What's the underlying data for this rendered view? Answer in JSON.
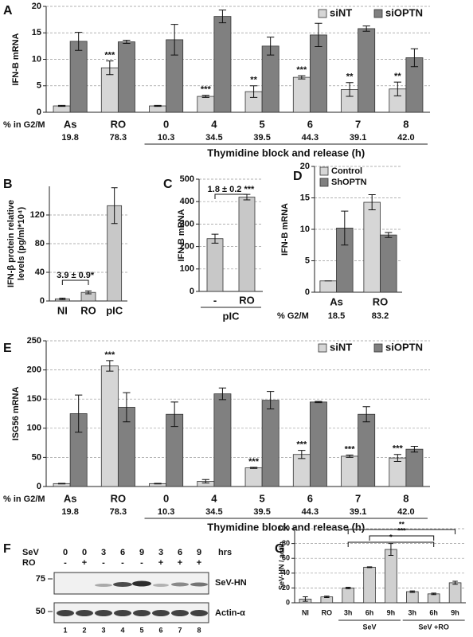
{
  "chart_data": [
    {
      "panel": "A",
      "type": "bar",
      "ylabel": "IFN-B mRNA",
      "categories": [
        "As",
        "RO",
        "0",
        "4",
        "5",
        "6",
        "7",
        "8"
      ],
      "series": [
        {
          "name": "siNT",
          "color": "#d6d6d6",
          "values": [
            1.2,
            8.4,
            1.2,
            3.0,
            3.9,
            6.6,
            4.3,
            4.4
          ],
          "errors": [
            0.1,
            1.3,
            0.1,
            0.2,
            1.1,
            0.3,
            1.3,
            1.3
          ]
        },
        {
          "name": "siOPTN",
          "color": "#808080",
          "values": [
            13.4,
            13.3,
            13.7,
            18.1,
            12.5,
            14.6,
            15.8,
            10.3
          ],
          "errors": [
            1.7,
            0.3,
            2.9,
            1.2,
            1.7,
            2.2,
            0.5,
            1.7
          ]
        }
      ],
      "significance": [
        null,
        "***",
        null,
        "***",
        "**",
        "***",
        "**",
        "**"
      ],
      "row_label": "% in G2/M",
      "row_values": [
        "19.8",
        "78.3",
        "10.3",
        "34.5",
        "39.5",
        "44.3",
        "39.1",
        "42.0"
      ],
      "group_labels": [
        "Thymidine block and release (h)"
      ],
      "ylim": [
        0,
        20
      ],
      "yticks": [
        0,
        5,
        10,
        15,
        20
      ],
      "grid": true,
      "legend": "upper right"
    },
    {
      "panel": "B",
      "type": "bar",
      "ylabel": [
        "IFN-β protein relative",
        "levels (pg/ml*10⁴)"
      ],
      "categories": [
        "NI",
        "RO",
        "pIC"
      ],
      "color": "#c8c8c8",
      "values": [
        3,
        12,
        133
      ],
      "errors": [
        1,
        2,
        25
      ],
      "annotations": [
        "3.9 ± 0.9*"
      ],
      "ylim": [
        0,
        160
      ],
      "yticks": [
        0,
        40,
        80,
        120
      ],
      "grid": true
    },
    {
      "panel": "C",
      "type": "bar",
      "ylabel": "IFN-B mRNA",
      "categories": [
        "-",
        "RO"
      ],
      "color": "#c8c8c8",
      "values": [
        235,
        420
      ],
      "errors": [
        20,
        12
      ],
      "annotations": [
        "1.8 ± 0.2 ***"
      ],
      "group_labels": [
        "pIC"
      ],
      "ylim": [
        0,
        500
      ],
      "yticks": [
        0,
        100,
        200,
        300,
        400,
        500
      ],
      "grid": true
    },
    {
      "panel": "D",
      "type": "bar",
      "ylabel": "IFN-B mRNA",
      "categories": [
        "As",
        "RO"
      ],
      "series": [
        {
          "name": "Control",
          "color": "#d6d6d6",
          "values": [
            1.8,
            14.3
          ],
          "errors": [
            0,
            1.2
          ]
        },
        {
          "name": "ShOPTN",
          "color": "#808080",
          "values": [
            10.2,
            9.1
          ],
          "errors": [
            2.7,
            0.4
          ]
        }
      ],
      "row_label": "% G2/M",
      "row_values": [
        "18.5",
        "83.2"
      ],
      "ylim": [
        0,
        20
      ],
      "yticks": [
        0,
        5,
        10,
        15,
        20
      ],
      "grid": true,
      "legend": "upper left"
    },
    {
      "panel": "E",
      "type": "bar",
      "ylabel": "ISG56 mRNA",
      "categories": [
        "As",
        "RO",
        "0",
        "4",
        "5",
        "6",
        "7",
        "8"
      ],
      "series": [
        {
          "name": "siNT",
          "color": "#d6d6d6",
          "values": [
            5,
            207,
            5,
            9,
            32,
            55,
            52,
            49
          ],
          "errors": [
            0.5,
            9,
            0.5,
            3,
            1,
            7,
            2,
            6
          ]
        },
        {
          "name": "siOPTN",
          "color": "#808080",
          "values": [
            125,
            136,
            124,
            159,
            148,
            145,
            124,
            64
          ],
          "errors": [
            32,
            25,
            21,
            10,
            15,
            1,
            13,
            5
          ]
        }
      ],
      "significance": [
        null,
        "***",
        null,
        null,
        "***",
        "***",
        "***",
        "***"
      ],
      "row_label": "% in G2/M",
      "row_values": [
        "19.8",
        "78.3",
        "10.3",
        "34.5",
        "39.5",
        "44.3",
        "39.1",
        "42.0"
      ],
      "group_labels": [
        "Thymidine block and release (h)"
      ],
      "ylim": [
        0,
        250
      ],
      "yticks": [
        0,
        50,
        100,
        150,
        200,
        250
      ],
      "grid": true,
      "legend": "upper right"
    },
    {
      "panel": "G",
      "type": "bar",
      "ylabel": "SeV-HN / actin",
      "categories": [
        "NI",
        "RO",
        "3h",
        "6h",
        "9h",
        "3h",
        "6h",
        "9h"
      ],
      "color": "#d0d0d0",
      "values": [
        5,
        8,
        20,
        48,
        72,
        15,
        12,
        27
      ],
      "errors": [
        3,
        1,
        1,
        0.5,
        8,
        1,
        1,
        2
      ],
      "annotations": [
        "*",
        "***",
        "**"
      ],
      "group_labels": [
        "SeV",
        "SeV +RO"
      ],
      "ylim": [
        0,
        100
      ],
      "yticks": [
        0,
        20,
        40,
        60,
        80,
        100
      ],
      "grid": true
    }
  ],
  "blot": {
    "panel": "F",
    "row_labels": [
      "SeV",
      "RO"
    ],
    "rows": [
      [
        "0",
        "0",
        "3",
        "6",
        "9",
        "3",
        "6",
        "9"
      ],
      [
        "-",
        "+",
        "-",
        "-",
        "-",
        "+",
        "+",
        "+"
      ]
    ],
    "unit": "hrs",
    "markers": [
      "75",
      "50"
    ],
    "bands": [
      "SeV-HN",
      "Actin-α"
    ],
    "lanes": [
      "1",
      "2",
      "3",
      "4",
      "5",
      "6",
      "7",
      "8"
    ]
  }
}
